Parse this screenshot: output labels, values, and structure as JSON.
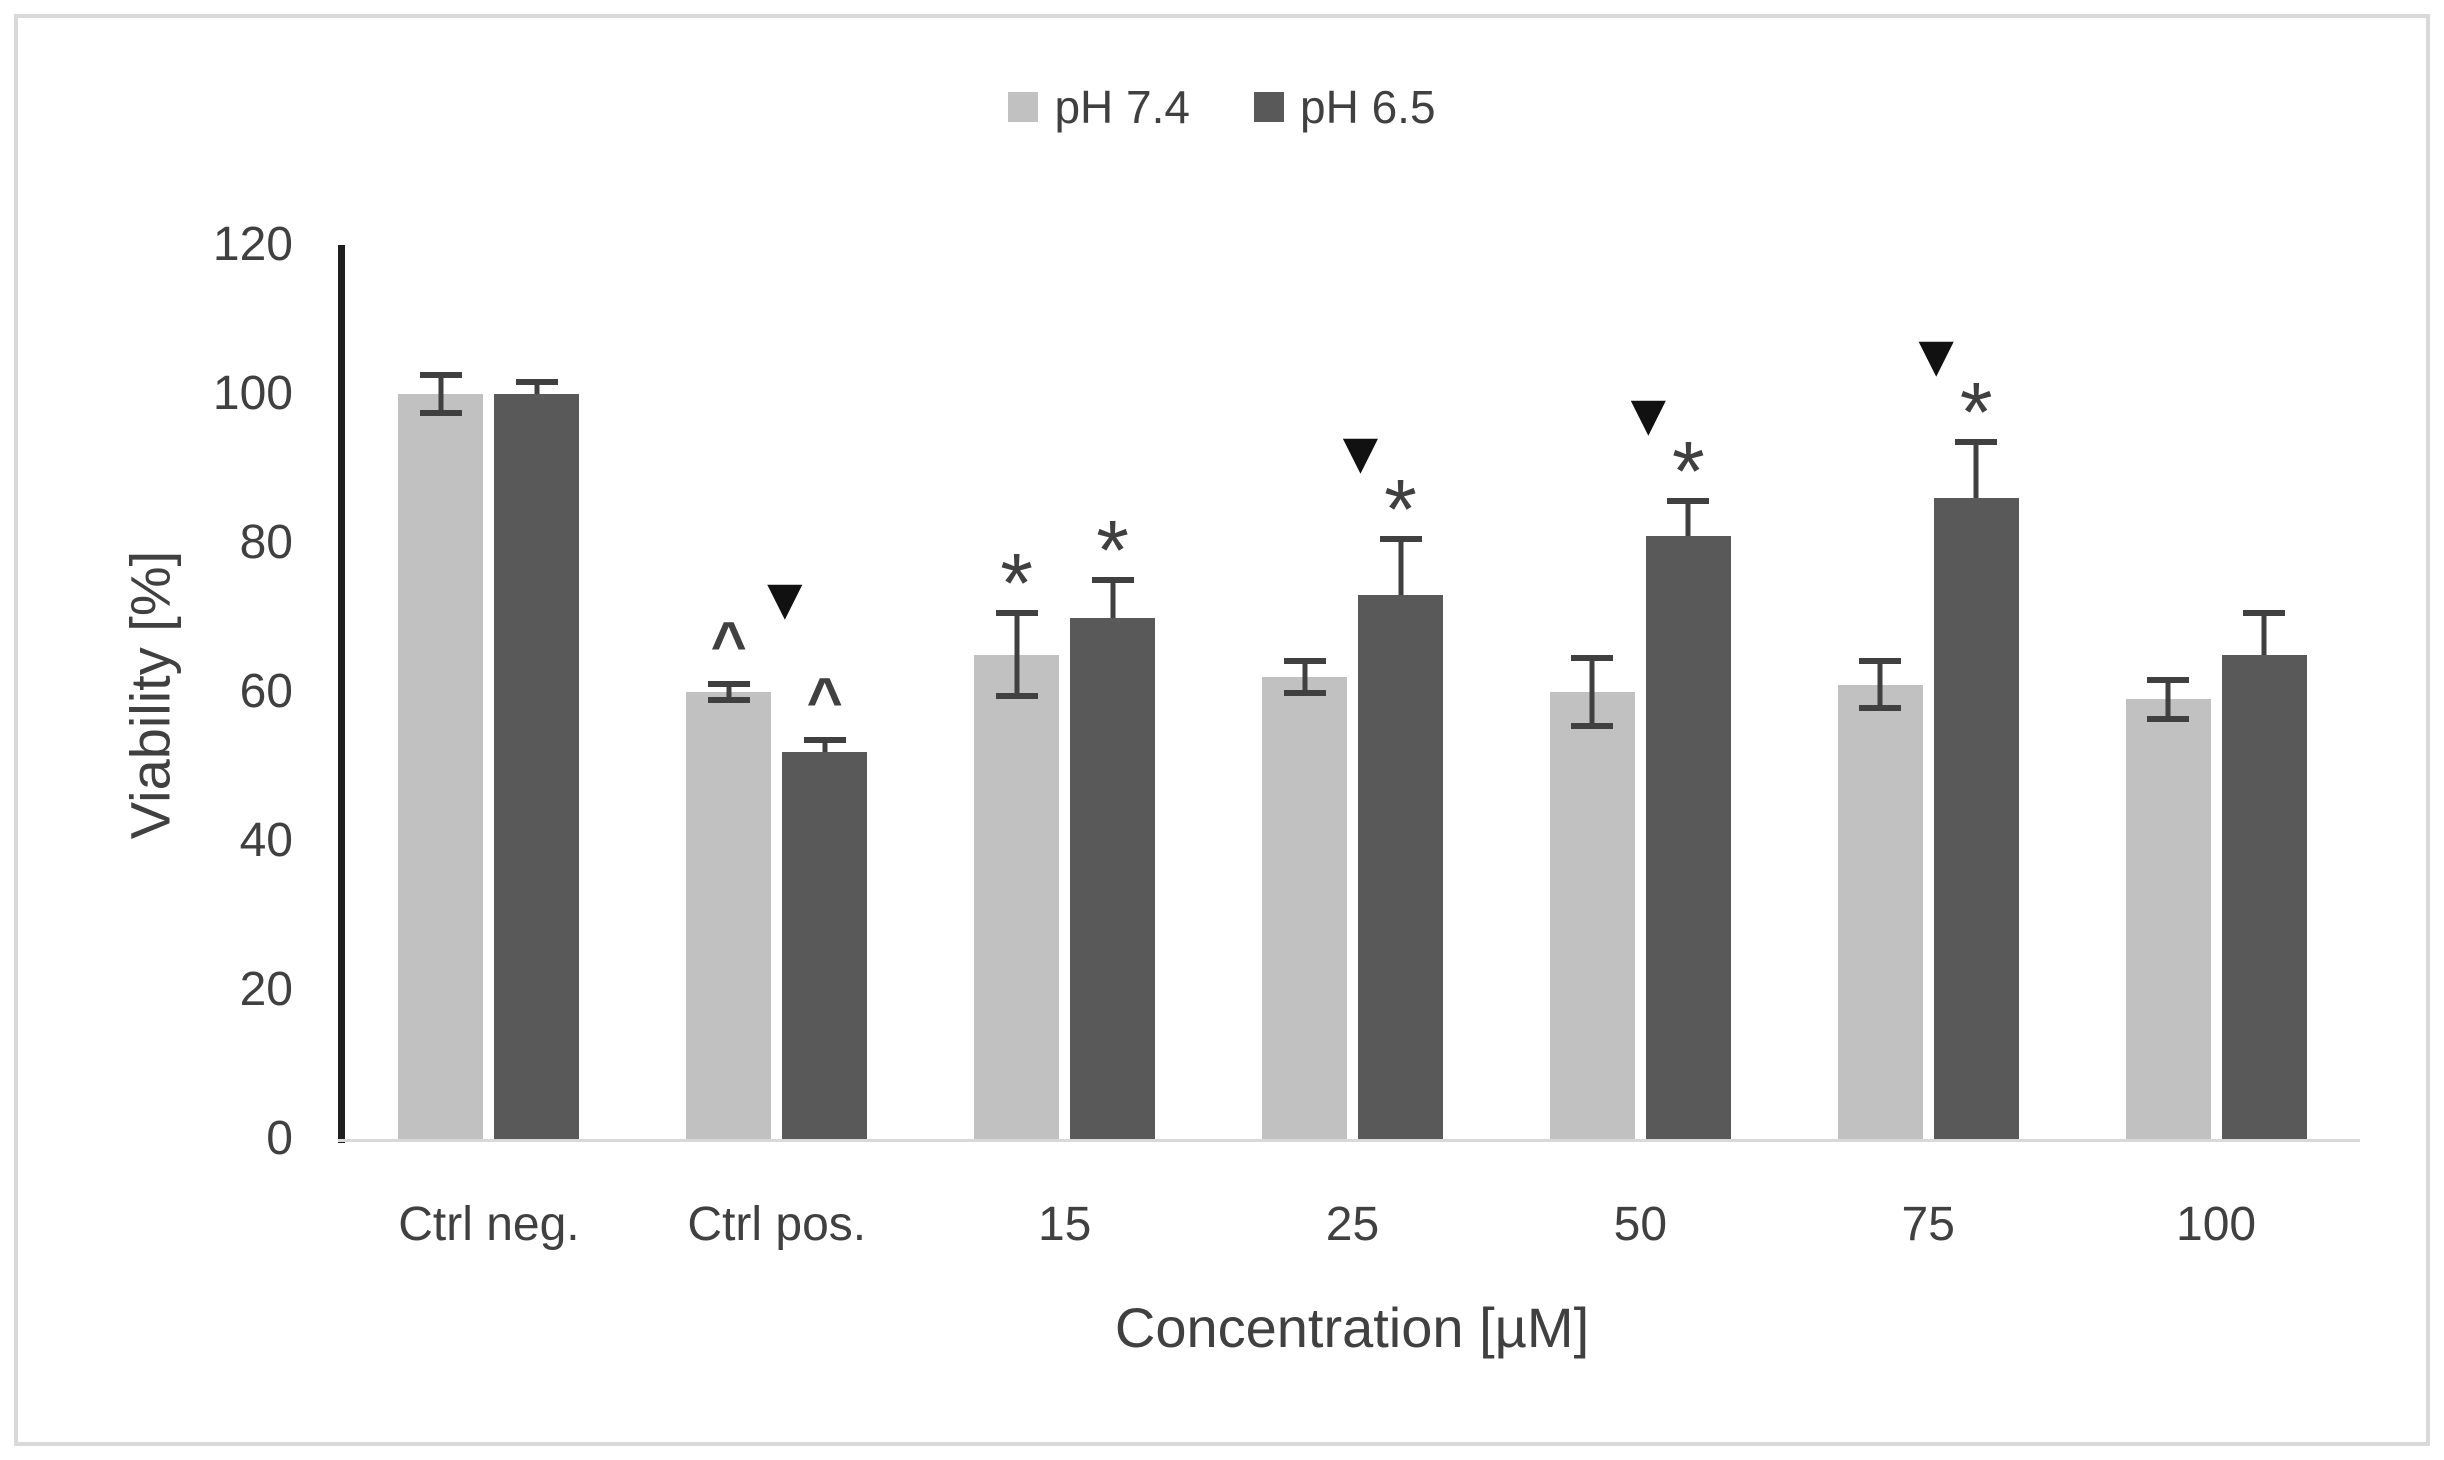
{
  "chart_data": {
    "type": "bar",
    "title": "",
    "xlabel": "Concentration [µM]",
    "ylabel": "Viability [%]",
    "ylim": [
      0,
      120
    ],
    "yticks": [
      0,
      20,
      40,
      60,
      80,
      100,
      120
    ],
    "categories": [
      "Ctrl neg.",
      "Ctrl pos.",
      "15",
      "25",
      "50",
      "75",
      "100"
    ],
    "series": [
      {
        "name": "pH 7.4",
        "color": "#c1c1c1",
        "values": [
          100,
          60,
          65,
          62,
          60,
          61,
          59
        ],
        "errors": [
          3,
          1.5,
          6,
          2.5,
          5,
          3.5,
          3
        ],
        "annotations": [
          [],
          [
            "caret"
          ],
          [
            "asterisk"
          ],
          [],
          [],
          [],
          []
        ]
      },
      {
        "name": "pH 6.5",
        "color": "#595959",
        "values": [
          100,
          52,
          70,
          73,
          81,
          86,
          65
        ],
        "errors": [
          2,
          2,
          5.5,
          8,
          5,
          8,
          6
        ],
        "annotations": [
          [],
          [
            "caret",
            "triangle"
          ],
          [
            "asterisk"
          ],
          [
            "asterisk",
            "triangle"
          ],
          [
            "asterisk",
            "triangle"
          ],
          [
            "asterisk",
            "triangle"
          ],
          []
        ]
      }
    ],
    "legend_position": "top",
    "grid": false,
    "annotation_symbols": {
      "caret": "^",
      "asterisk": "*",
      "triangle": "▼"
    },
    "colors": {
      "text": "#404040",
      "axis_line": "#1f1f1f",
      "baseline": "#d9d9d9",
      "frame_border": "#d9d9d9",
      "error_bar": "#404040",
      "triangle": "#111111",
      "background": "#ffffff"
    }
  }
}
